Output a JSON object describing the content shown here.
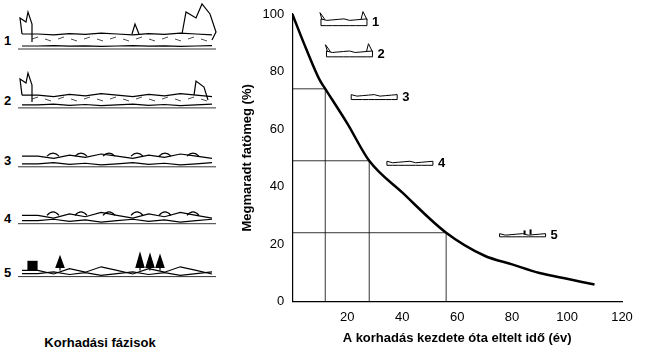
{
  "chart_data": {
    "type": "line",
    "x_label": "A korhadás kezdete óta eltelt idő (év)",
    "y_label": "Megmaradt fatömeg (%)",
    "x": [
      0,
      5,
      10,
      12,
      20,
      28,
      40,
      56,
      70,
      80,
      90,
      100,
      110
    ],
    "values": [
      100,
      88,
      77,
      74,
      62,
      49,
      38,
      24,
      16,
      13,
      10,
      8,
      6
    ],
    "color": "#000000",
    "xlim": [
      0,
      120
    ],
    "xticks": [
      20,
      40,
      60,
      80,
      100,
      120
    ],
    "ylim": [
      0,
      100
    ],
    "yticks": [
      0,
      20,
      40,
      60,
      80,
      100
    ],
    "grid": false,
    "guides": [
      {
        "x": 12,
        "y": 74
      },
      {
        "x": 28,
        "y": 49
      },
      {
        "x": 56,
        "y": 24
      }
    ],
    "annotations": [
      {
        "text": "1",
        "x": 29,
        "y": 97
      },
      {
        "text": "2",
        "x": 31,
        "y": 86
      },
      {
        "text": "3",
        "x": 40,
        "y": 71
      },
      {
        "text": "4",
        "x": 53,
        "y": 48
      },
      {
        "text": "5",
        "x": 94,
        "y": 23
      }
    ]
  },
  "phases_panel": {
    "labels": [
      "1",
      "2",
      "3",
      "4",
      "5"
    ],
    "caption": "Korhadási fázisok"
  }
}
